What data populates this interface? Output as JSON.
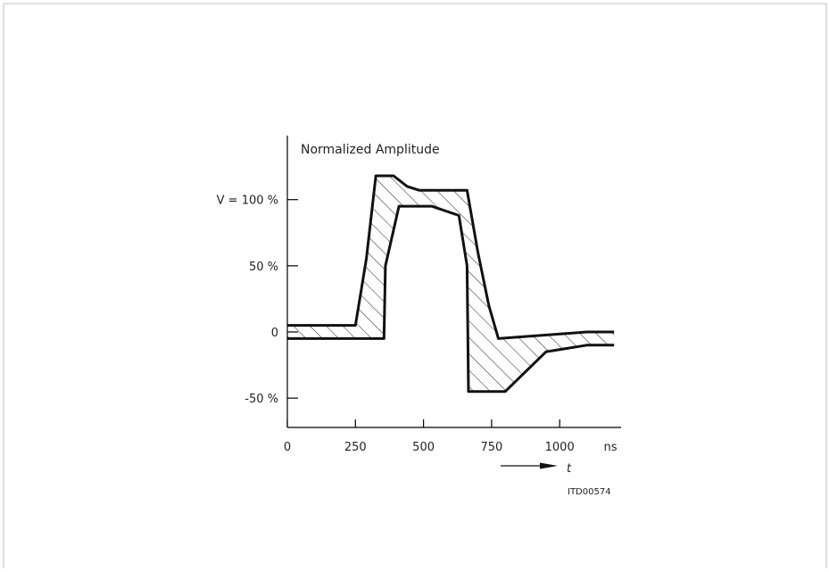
{
  "chart_data": {
    "type": "line",
    "title": "Normalized Amplitude",
    "x_unit_label": "ns",
    "x_variable": "t",
    "figure_code": "ITD00574",
    "xlim": [
      0,
      1200
    ],
    "ylim": [
      -75,
      145
    ],
    "x_ticks": [
      {
        "value": 0,
        "label": "0"
      },
      {
        "value": 250,
        "label": "250"
      },
      {
        "value": 500,
        "label": "500"
      },
      {
        "value": 750,
        "label": "750"
      },
      {
        "value": 1000,
        "label": "1000"
      }
    ],
    "y_ticks": [
      {
        "value": 100,
        "label": "V = 100 %"
      },
      {
        "value": 50,
        "label": "50 %"
      },
      {
        "value": 0,
        "label": "0"
      },
      {
        "value": -50,
        "label": "-50 %"
      }
    ],
    "series": [
      {
        "values_role": "upper",
        "points": [
          [
            0,
            5
          ],
          [
            250,
            5
          ],
          [
            290,
            55
          ],
          [
            325,
            118
          ],
          [
            390,
            118
          ],
          [
            440,
            110
          ],
          [
            485,
            107
          ],
          [
            660,
            107
          ],
          [
            700,
            60
          ],
          [
            740,
            20
          ],
          [
            775,
            -5
          ],
          [
            1100,
            0
          ],
          [
            1200,
            0
          ]
        ]
      },
      {
        "values_role": "lower",
        "points": [
          [
            0,
            -5
          ],
          [
            355,
            -5
          ],
          [
            360,
            50
          ],
          [
            410,
            95
          ],
          [
            530,
            95
          ],
          [
            630,
            88
          ],
          [
            660,
            50
          ],
          [
            665,
            -45
          ],
          [
            800,
            -45
          ],
          [
            950,
            -15
          ],
          [
            1100,
            -10
          ],
          [
            1200,
            -10
          ]
        ]
      }
    ],
    "shaded_region": "between upper and lower",
    "grid": false
  }
}
